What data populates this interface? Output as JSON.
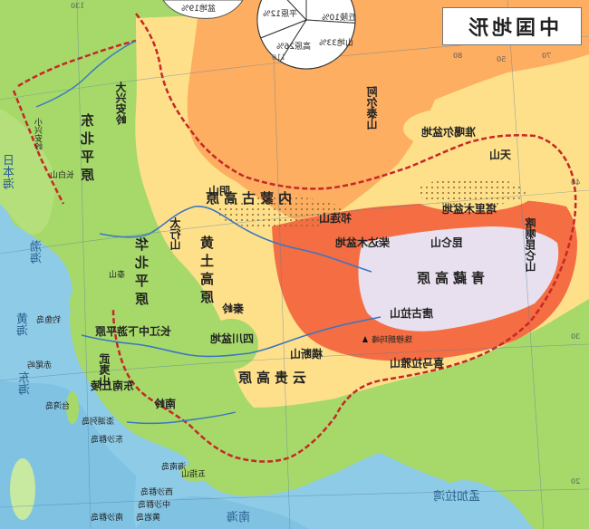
{
  "map": {
    "title": "中国地形",
    "colors": {
      "ocean": "#8ecbe6",
      "lowland": "#a6d96a",
      "hills": "#fee08b",
      "plateau": "#fdae61",
      "high": "#f46d43",
      "ice": "#e8e0ee"
    },
    "pie": {
      "slices": [
        {
          "label": "高原",
          "percent": 26,
          "display": "高原26%"
        },
        {
          "label": "山地",
          "percent": 33,
          "display": "山地33%"
        },
        {
          "label": "丘陵",
          "percent": 10,
          "display": "丘陵10%"
        },
        {
          "label": "盆地",
          "percent": 19,
          "display": "盆地19%"
        },
        {
          "label": "平原",
          "percent": 12,
          "display": "平原12%"
        }
      ]
    },
    "plains": {
      "northeast": "东北平原",
      "north_china": "华北平原",
      "yangtze": "长江中下游平原"
    },
    "plateaus": {
      "inner_mongolia": "内蒙古高原",
      "loess": "黄土高原",
      "yungui": "云贵高原",
      "qinghai_tibet": "青藏高原"
    },
    "basins": {
      "junggar": "准噶尔盆地",
      "tarim": "塔里木盆地",
      "qaidam": "柴达木盆地",
      "sichuan": "四川盆地"
    },
    "mountains": {
      "greater_khingan": "大兴安岭",
      "lesser_khingan": "小兴安岭",
      "changbai": "长白山",
      "taihang": "太行山",
      "yinshan": "阴山",
      "tianshan": "天山",
      "altai": "阿尔泰山",
      "kunlun": "昆仑山",
      "qilian": "祁连山",
      "tanggula": "唐古拉山",
      "qinling": "秦岭",
      "hengduan": "横断山",
      "wuyi": "武夷山",
      "nanling": "南岭",
      "himalaya": "喜马拉雅山",
      "karakoram": "喀喇昆仑山",
      "taishan": "泰山",
      "wuzhi": "五指山"
    },
    "peak": "珠穆朗玛峰",
    "hills": {
      "southeast": "东南丘陵"
    },
    "seas": {
      "bohai": "渤海",
      "yellow": "黄海",
      "east": "东海",
      "south": "南海",
      "japan": "日本海",
      "bay_of_bengal": "孟加拉湾"
    },
    "islands": {
      "taiwan": "台湾岛",
      "hainan": "海南岛",
      "diaoyu": "钓鱼岛",
      "chiwei": "赤尾屿",
      "dongsha": "东沙群岛",
      "xisha": "西沙群岛",
      "zhongsha": "中沙群岛",
      "penghu": "澎湖列岛",
      "huangyan": "黄岩岛",
      "nansha": "南沙群岛"
    },
    "graticule": {
      "lat50": "50",
      "lat40": "40",
      "lat30": "30",
      "lat20": "20",
      "lon130": "130",
      "lon110": "110",
      "lon80": "80",
      "lon70": "70"
    }
  }
}
